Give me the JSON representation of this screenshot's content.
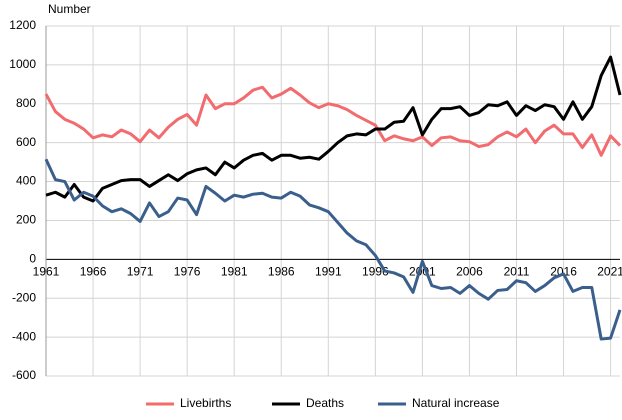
{
  "chart_data": {
    "type": "line",
    "y_axis_label": "Number",
    "x": [
      1961,
      1962,
      1963,
      1964,
      1965,
      1966,
      1967,
      1968,
      1969,
      1970,
      1971,
      1972,
      1973,
      1974,
      1975,
      1976,
      1977,
      1978,
      1979,
      1980,
      1981,
      1982,
      1983,
      1984,
      1985,
      1986,
      1987,
      1988,
      1989,
      1990,
      1991,
      1992,
      1993,
      1994,
      1995,
      1996,
      1997,
      1998,
      1999,
      2000,
      2001,
      2002,
      2003,
      2004,
      2005,
      2006,
      2007,
      2008,
      2009,
      2010,
      2011,
      2012,
      2013,
      2014,
      2015,
      2016,
      2017,
      2018,
      2019,
      2020,
      2021,
      2022
    ],
    "series": [
      {
        "name": "Livebirths",
        "color": "#f26b6e",
        "values": [
          850,
          760,
          720,
          700,
          670,
          625,
          640,
          630,
          665,
          645,
          605,
          665,
          625,
          680,
          720,
          745,
          690,
          845,
          775,
          800,
          800,
          830,
          870,
          885,
          830,
          850,
          880,
          845,
          805,
          780,
          800,
          790,
          770,
          740,
          715,
          690,
          610,
          635,
          620,
          610,
          630,
          585,
          625,
          630,
          610,
          605,
          580,
          590,
          630,
          655,
          630,
          670,
          600,
          660,
          690,
          645,
          645,
          575,
          640,
          535,
          635,
          585
        ]
      },
      {
        "name": "Deaths",
        "color": "#000000",
        "values": [
          330,
          345,
          320,
          385,
          320,
          300,
          365,
          385,
          405,
          410,
          410,
          375,
          405,
          435,
          405,
          440,
          460,
          470,
          435,
          500,
          470,
          510,
          535,
          545,
          510,
          535,
          535,
          520,
          525,
          515,
          555,
          600,
          635,
          645,
          640,
          670,
          670,
          705,
          710,
          780,
          640,
          720,
          775,
          775,
          785,
          740,
          755,
          795,
          790,
          810,
          740,
          790,
          765,
          795,
          785,
          720,
          810,
          720,
          785,
          945,
          1040,
          845
        ]
      },
      {
        "name": "Natural increase",
        "color": "#3b5f8c",
        "values": [
          515,
          410,
          400,
          305,
          345,
          325,
          275,
          245,
          260,
          235,
          195,
          290,
          220,
          245,
          315,
          305,
          230,
          375,
          340,
          300,
          330,
          320,
          335,
          340,
          320,
          315,
          345,
          325,
          280,
          265,
          245,
          190,
          135,
          95,
          75,
          20,
          -60,
          -70,
          -90,
          -170,
          -10,
          -135,
          -150,
          -145,
          -175,
          -135,
          -175,
          -205,
          -160,
          -155,
          -110,
          -120,
          -165,
          -135,
          -95,
          -75,
          -165,
          -145,
          -145,
          -410,
          -405,
          -260
        ]
      }
    ],
    "xlim": [
      1961,
      2022
    ],
    "xticks": [
      1961,
      1966,
      1971,
      1976,
      1981,
      1986,
      1991,
      1996,
      2001,
      2006,
      2011,
      2016,
      2021
    ],
    "ylim": [
      -600,
      1200
    ],
    "yticks": [
      -600,
      -400,
      -200,
      0,
      200,
      400,
      600,
      800,
      1000,
      1200
    ],
    "grid": true,
    "legend": "bottom"
  }
}
